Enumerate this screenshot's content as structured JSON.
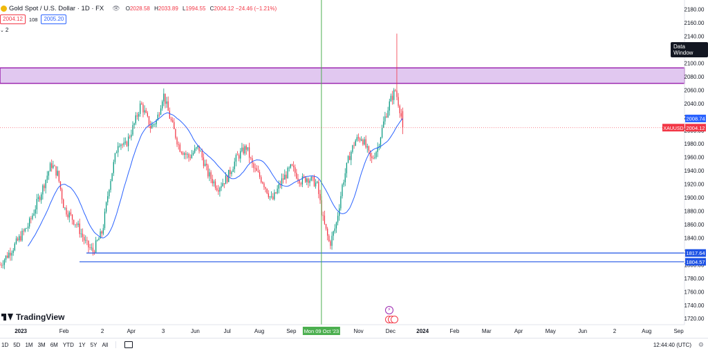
{
  "header": {
    "symbol_icon": "gold-coin-icon",
    "title": "Gold Spot / U.S. Dollar · 1D · FX",
    "o_label": "O",
    "o_value": "2028.58",
    "h_label": "H",
    "h_value": "2033.89",
    "l_label": "L",
    "l_value": "1994.55",
    "c_label": "C",
    "c_value": "2004.12",
    "change": "−24.46 (−1.21%)"
  },
  "trade": {
    "sell_price": "2004.12",
    "spread": "108",
    "buy_price": "2005.20"
  },
  "indicator_count": "2",
  "watermark": "TradingView",
  "data_window_label": "Data Window",
  "toolbar": {
    "ranges": [
      "1D",
      "5D",
      "1M",
      "3M",
      "6M",
      "YTD",
      "1Y",
      "5Y",
      "All"
    ],
    "clock": "12:44:40 (UTC)"
  },
  "colors": {
    "up": "#089981",
    "down": "#f23645",
    "ma": "#2962ff",
    "zone_fill": "#e1c8f0",
    "zone_border": "#9c27b0",
    "support": "#1e53e5",
    "vline": "#4caf50"
  },
  "chart_data": {
    "type": "candlestick",
    "title": "Gold Spot / U.S. Dollar · 1D · FX",
    "yaxis": {
      "range": [
        1711,
        2194
      ],
      "ticks": [
        2180,
        2160,
        2140,
        2120,
        2100,
        2080,
        2060,
        2040,
        2020,
        2000,
        1980,
        1960,
        1940,
        1920,
        1900,
        1880,
        1860,
        1840,
        1820,
        1800,
        1780,
        1760,
        1740,
        1720
      ],
      "tick_labels": [
        "2180.00",
        "2160.00",
        "2140.00",
        "2120.00",
        "2100.00",
        "2080.00",
        "2060.00",
        "2040.00",
        "2020.00",
        "2000.00",
        "1980.00",
        "1960.00",
        "1940.00",
        "1920.00",
        "1900.00",
        "1880.00",
        "1860.00",
        "1840.00",
        "1820.00",
        "1800.00",
        "1780.00",
        "1760.00",
        "1740.00",
        "1720.00"
      ],
      "position": "right"
    },
    "xaxis": {
      "start_label": "2023-01 (left edge)",
      "ticks": [
        {
          "label": "2023",
          "month_index": 0.65,
          "bold": true
        },
        {
          "label": "Feb",
          "month_index": 2.0
        },
        {
          "label": "2",
          "month_index": 3.2
        },
        {
          "label": "Apr",
          "month_index": 4.1
        },
        {
          "label": "3",
          "month_index": 5.1
        },
        {
          "label": "Jun",
          "month_index": 6.1
        },
        {
          "label": "Jul",
          "month_index": 7.1
        },
        {
          "label": "Aug",
          "month_index": 8.1
        },
        {
          "label": "Sep",
          "month_index": 9.1
        },
        {
          "label": "Nov",
          "month_index": 11.2
        },
        {
          "label": "Dec",
          "month_index": 12.2
        },
        {
          "label": "2024",
          "month_index": 13.2,
          "bold": true
        },
        {
          "label": "Feb",
          "month_index": 14.2
        },
        {
          "label": "Mar",
          "month_index": 15.2
        },
        {
          "label": "Apr",
          "month_index": 16.2
        },
        {
          "label": "May",
          "month_index": 17.2
        },
        {
          "label": "Jun",
          "month_index": 18.2
        },
        {
          "label": "2",
          "month_index": 19.2
        },
        {
          "label": "Aug",
          "month_index": 20.2
        },
        {
          "label": "Sep",
          "month_index": 21.2
        }
      ],
      "crosshair_label": "Mon 09 Oct '23",
      "crosshair_month_index": 10.3
    },
    "price_path_monthly": [
      [
        0.0,
        1800
      ],
      [
        0.4,
        1825
      ],
      [
        0.9,
        1860
      ],
      [
        1.3,
        1910
      ],
      [
        1.6,
        1950
      ],
      [
        1.8,
        1935
      ],
      [
        2.0,
        1885
      ],
      [
        2.4,
        1860
      ],
      [
        2.7,
        1830
      ],
      [
        2.9,
        1820
      ],
      [
        3.2,
        1850
      ],
      [
        3.4,
        1915
      ],
      [
        3.7,
        1985
      ],
      [
        3.9,
        1975
      ],
      [
        4.2,
        2010
      ],
      [
        4.4,
        2040
      ],
      [
        4.7,
        2005
      ],
      [
        4.9,
        2015
      ],
      [
        5.1,
        2055
      ],
      [
        5.3,
        2020
      ],
      [
        5.6,
        1975
      ],
      [
        5.9,
        1960
      ],
      [
        6.2,
        1975
      ],
      [
        6.5,
        1935
      ],
      [
        6.8,
        1915
      ],
      [
        7.1,
        1930
      ],
      [
        7.4,
        1960
      ],
      [
        7.7,
        1975
      ],
      [
        7.9,
        1945
      ],
      [
        8.2,
        1925
      ],
      [
        8.5,
        1895
      ],
      [
        8.8,
        1925
      ],
      [
        9.1,
        1945
      ],
      [
        9.4,
        1925
      ],
      [
        9.6,
        1930
      ],
      [
        9.9,
        1920
      ],
      [
        10.1,
        1865
      ],
      [
        10.3,
        1830
      ],
      [
        10.5,
        1860
      ],
      [
        10.7,
        1920
      ],
      [
        10.9,
        1960
      ],
      [
        11.1,
        1985
      ],
      [
        11.3,
        1990
      ],
      [
        11.6,
        1955
      ],
      [
        11.8,
        1975
      ],
      [
        12.0,
        2015
      ],
      [
        12.2,
        2045
      ],
      [
        12.35,
        2060
      ],
      [
        12.5,
        2030
      ],
      [
        12.6,
        2004
      ]
    ],
    "last_close": 2004.12,
    "wick_high": 2144,
    "moving_average": {
      "last_value": 2008.74
    },
    "annotations": {
      "resistance_zone": [
        2070,
        2093
      ],
      "support_levels": [
        1817.64,
        1804.57
      ],
      "last_price_label": "2004.12",
      "ma_label": "2008.74",
      "symbol_label": "XAUUSD"
    },
    "grid": false,
    "legend": "none"
  }
}
